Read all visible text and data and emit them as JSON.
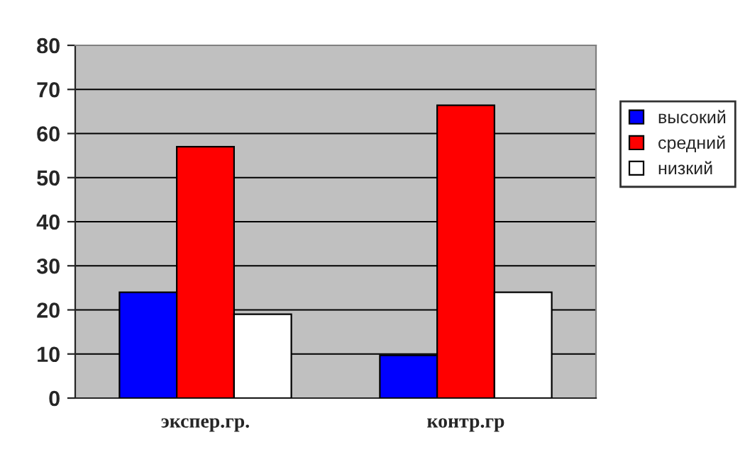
{
  "chart_data": {
    "type": "bar",
    "categories": [
      "экспер.гр.",
      "контр.гр"
    ],
    "series": [
      {
        "name": "высокий",
        "color": "#0000ff",
        "values": [
          24,
          9.7
        ]
      },
      {
        "name": "средний",
        "color": "#ff0000",
        "values": [
          57,
          66.4
        ]
      },
      {
        "name": "низкий",
        "color": "#ffffff",
        "values": [
          19,
          24
        ]
      }
    ],
    "ylim": [
      0,
      80
    ],
    "yticks": [
      0,
      10,
      20,
      30,
      40,
      50,
      60,
      70,
      80
    ],
    "grid": "y",
    "legend": "right"
  }
}
